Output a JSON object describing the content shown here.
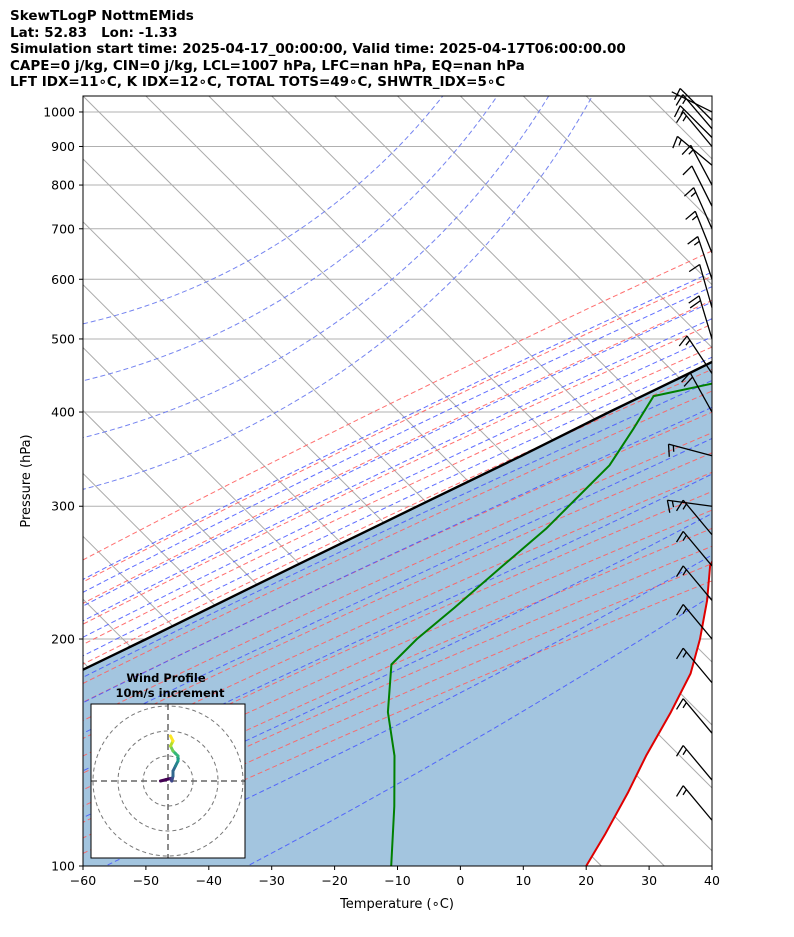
{
  "header": {
    "line1": "SkewTLogP NottmEMids",
    "line2": "Lat: 52.83   Lon: -1.33",
    "line3": "Simulation start time: 2025-04-17_00:00:00, Valid time: 2025-04-17T06:00:00.00",
    "line4": "CAPE=0 j/kg, CIN=0 j/kg, LCL=1007 hPa, LFC=nan hPa, EQ=nan hPa",
    "line5": "LFT IDX=11∘C, K IDX=12∘C, TOTAL TOTS=49∘C, SHWTR_IDX=5∘C"
  },
  "chart_data": {
    "type": "line",
    "subtype": "skew-T log-P diagram",
    "xlabel": "Temperature (∘C)",
    "ylabel": "Pressure (hPa)",
    "xlim": [
      -60,
      40
    ],
    "ylim": [
      1050,
      100
    ],
    "y_scale": "log",
    "skew": "isotherms slanted 45 degrees",
    "grid": true,
    "x_ticks": [
      "−60",
      "−50",
      "−40",
      "−30",
      "−20",
      "−10",
      "0",
      "10",
      "20",
      "30",
      "40"
    ],
    "x_tick_values": [
      -60,
      -50,
      -40,
      -30,
      -20,
      -10,
      0,
      10,
      20,
      30,
      40
    ],
    "y_ticks": [
      "1000",
      "900",
      "800",
      "700",
      "600",
      "500",
      "400",
      "300",
      "200",
      "100"
    ],
    "y_tick_values": [
      1000,
      900,
      800,
      700,
      600,
      500,
      400,
      300,
      200,
      100
    ],
    "background_lines": {
      "isotherms": {
        "color": "#aaaaaa"
      },
      "dry_adiabats": {
        "color": "#ff6060",
        "style": "dashed"
      },
      "moist_adiabats": {
        "color": "#4455ff",
        "style": "dashed"
      },
      "mixing_ratio": {
        "color": "#aa44cc",
        "style": "dashed"
      },
      "dashed_circles": {
        "color": "#6677ee",
        "style": "dashed"
      }
    },
    "series": [
      {
        "role": "temperature",
        "color": "#e00000",
        "points": [
          [
            1000,
            2
          ],
          [
            980,
            6
          ],
          [
            960,
            7
          ],
          [
            930,
            6
          ],
          [
            880,
            5
          ],
          [
            800,
            3
          ],
          [
            750,
            1
          ],
          [
            700,
            -2
          ],
          [
            650,
            -4
          ],
          [
            600,
            -6
          ],
          [
            550,
            -9
          ],
          [
            500,
            -12
          ],
          [
            480,
            -14
          ],
          [
            450,
            -13
          ],
          [
            420,
            -12
          ],
          [
            380,
            -11
          ],
          [
            340,
            -10
          ],
          [
            310,
            -11
          ],
          [
            280,
            -11
          ],
          [
            250,
            -8
          ],
          [
            225,
            -3
          ],
          [
            200,
            2
          ],
          [
            180,
            6
          ],
          [
            160,
            9
          ],
          [
            140,
            12
          ],
          [
            125,
            15
          ],
          [
            110,
            18
          ],
          [
            100,
            20
          ]
        ]
      },
      {
        "role": "dewpoint",
        "color": "#008000",
        "points": [
          [
            1000,
            1
          ],
          [
            980,
            3
          ],
          [
            960,
            2
          ],
          [
            930,
            -2
          ],
          [
            880,
            -7
          ],
          [
            830,
            -12
          ],
          [
            770,
            -20
          ],
          [
            740,
            -17
          ],
          [
            700,
            -10
          ],
          [
            660,
            -8
          ],
          [
            640,
            -12
          ],
          [
            590,
            -21
          ],
          [
            540,
            -26
          ],
          [
            500,
            -28
          ],
          [
            470,
            -30
          ],
          [
            440,
            -35
          ],
          [
            420,
            -44
          ],
          [
            380,
            -42
          ],
          [
            340,
            -40
          ],
          [
            310,
            -40
          ],
          [
            280,
            -40
          ],
          [
            250,
            -41
          ],
          [
            220,
            -42
          ],
          [
            200,
            -43
          ],
          [
            185,
            -43
          ],
          [
            160,
            -36
          ],
          [
            140,
            -28
          ],
          [
            120,
            -20
          ],
          [
            100,
            -11
          ]
        ]
      },
      {
        "role": "parcel",
        "color": "#000000",
        "points": [
          [
            1000,
            2
          ],
          [
            950,
            -2
          ],
          [
            900,
            -5.5
          ],
          [
            850,
            -9
          ],
          [
            800,
            -12
          ],
          [
            750,
            -15.5
          ],
          [
            700,
            -19
          ],
          [
            650,
            -23
          ],
          [
            600,
            -27
          ],
          [
            550,
            -31.5
          ],
          [
            500,
            -36.5
          ],
          [
            450,
            -42
          ],
          [
            400,
            -48.5
          ],
          [
            350,
            -55.5
          ],
          [
            300,
            -64
          ],
          [
            250,
            -74
          ],
          [
            200,
            -86
          ],
          [
            150,
            -102
          ],
          [
            100,
            -125
          ]
        ]
      }
    ],
    "shaded_area": {
      "between": [
        "parcel",
        "temperature"
      ],
      "color": "#a3c5df"
    },
    "wind_barbs": [
      {
        "p": 1000,
        "u": -4,
        "v": 2
      },
      {
        "p": 975,
        "u": -10,
        "v": 10
      },
      {
        "p": 950,
        "u": -12,
        "v": 14
      },
      {
        "p": 925,
        "u": -12,
        "v": 12
      },
      {
        "p": 900,
        "u": -10,
        "v": 12
      },
      {
        "p": 850,
        "u": -12,
        "v": 10
      },
      {
        "p": 800,
        "u": -8,
        "v": 15
      },
      {
        "p": 750,
        "u": -6,
        "v": 12
      },
      {
        "p": 700,
        "u": -8,
        "v": 18
      },
      {
        "p": 650,
        "u": -6,
        "v": 15
      },
      {
        "p": 600,
        "u": -6,
        "v": 18
      },
      {
        "p": 550,
        "u": -4,
        "v": 14
      },
      {
        "p": 500,
        "u": -6,
        "v": 20
      },
      {
        "p": 450,
        "u": -10,
        "v": 15
      },
      {
        "p": 400,
        "u": -10,
        "v": 18
      },
      {
        "p": 350,
        "u": -15,
        "v": 4
      },
      {
        "p": 300,
        "u": -15,
        "v": 2
      },
      {
        "p": 275,
        "u": -10,
        "v": 12
      },
      {
        "p": 250,
        "u": -10,
        "v": 12
      },
      {
        "p": 225,
        "u": -10,
        "v": 12
      },
      {
        "p": 200,
        "u": -10,
        "v": 12
      },
      {
        "p": 175,
        "u": -10,
        "v": 12
      },
      {
        "p": 150,
        "u": -10,
        "v": 12
      },
      {
        "p": 130,
        "u": -10,
        "v": 12
      },
      {
        "p": 115,
        "u": -10,
        "v": 12
      }
    ],
    "inset": {
      "title_line1": "Wind Profile",
      "title_line2": "10m/s increment",
      "rings": 3,
      "hodograph": [
        [
          -3,
          0
        ],
        [
          -1,
          0.5
        ],
        [
          1,
          1
        ],
        [
          1.5,
          0
        ],
        [
          2,
          2
        ],
        [
          2,
          4
        ],
        [
          3,
          6
        ],
        [
          4,
          8
        ],
        [
          4,
          10
        ],
        [
          3,
          11
        ],
        [
          2,
          12
        ],
        [
          1,
          14
        ],
        [
          2,
          16
        ],
        [
          1,
          18
        ]
      ]
    }
  }
}
